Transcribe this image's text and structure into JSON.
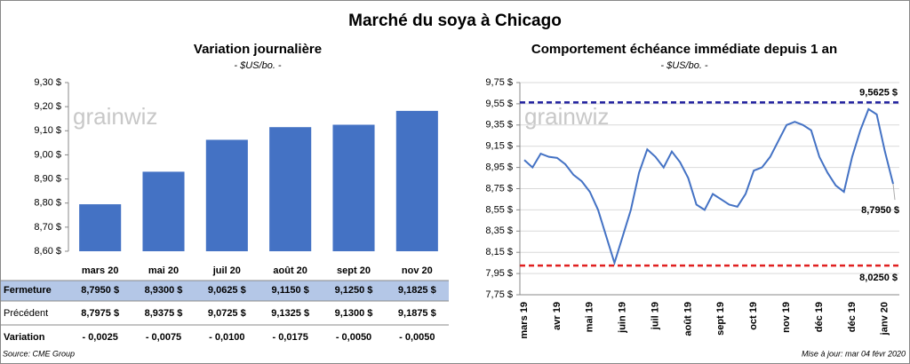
{
  "header": {
    "title": "Marché du soya à Chicago"
  },
  "chart_data": [
    {
      "type": "bar",
      "title": "Variation journalière",
      "subtitle": "- $US/bo. -",
      "watermark": "grainwiz",
      "categories": [
        "mars 20",
        "mai 20",
        "juil 20",
        "août 20",
        "sept 20",
        "nov 20"
      ],
      "values": [
        8.795,
        8.93,
        9.0625,
        9.115,
        9.125,
        9.1825
      ],
      "color": "#4472c4",
      "ylim": [
        8.6,
        9.3
      ],
      "yticks": [
        {
          "value": 8.6,
          "label": "8,60 $"
        },
        {
          "value": 8.7,
          "label": "8,70 $"
        },
        {
          "value": 8.8,
          "label": "8,80 $"
        },
        {
          "value": 8.9,
          "label": "8,90 $"
        },
        {
          "value": 9.0,
          "label": "9,00 $"
        },
        {
          "value": 9.1,
          "label": "9,10 $"
        },
        {
          "value": 9.2,
          "label": "9,20 $"
        },
        {
          "value": 9.3,
          "label": "9,30 $"
        }
      ]
    },
    {
      "type": "line",
      "title": "Comportement échéance immédiate depuis 1 an",
      "subtitle": "- $US/bo. -",
      "watermark": "grainwiz",
      "categories": [
        "mars 19",
        null,
        null,
        null,
        "avr 19",
        null,
        null,
        null,
        "mai 19",
        null,
        null,
        null,
        "juin 19",
        null,
        null,
        null,
        "juil 19",
        null,
        null,
        null,
        "août 19",
        null,
        null,
        null,
        "sept 19",
        null,
        null,
        null,
        "oct 19",
        null,
        null,
        null,
        "nov 19",
        null,
        null,
        null,
        "déc 19",
        null,
        null,
        null,
        "déc 19",
        null,
        null,
        null,
        "janv 20",
        null
      ],
      "series": [
        {
          "name": "Échéance immédiate",
          "color": "#4472c4",
          "values": [
            9.02,
            8.95,
            9.08,
            9.05,
            9.04,
            8.98,
            8.88,
            8.82,
            8.72,
            8.55,
            8.3,
            8.05,
            8.3,
            8.55,
            8.9,
            9.12,
            9.05,
            8.95,
            9.1,
            9.0,
            8.85,
            8.6,
            8.55,
            8.7,
            8.65,
            8.6,
            8.58,
            8.7,
            8.92,
            8.95,
            9.05,
            9.2,
            9.35,
            9.38,
            9.35,
            9.3,
            9.05,
            8.9,
            8.78,
            8.72,
            9.05,
            9.3,
            9.5,
            9.45,
            9.1,
            8.795
          ]
        }
      ],
      "end_label": "8,7950 $",
      "reference_lines": [
        {
          "value": 9.5625,
          "label": "9,5625 $",
          "color": "#1f1f9e"
        },
        {
          "value": 8.025,
          "label": "8,0250 $",
          "color": "#e02020"
        }
      ],
      "ylim": [
        7.75,
        9.75
      ],
      "yticks": [
        {
          "value": 7.75,
          "label": "7,75 $"
        },
        {
          "value": 7.95,
          "label": "7,95 $"
        },
        {
          "value": 8.15,
          "label": "8,15 $"
        },
        {
          "value": 8.35,
          "label": "8,35 $"
        },
        {
          "value": 8.55,
          "label": "8,55 $"
        },
        {
          "value": 8.75,
          "label": "8,75 $"
        },
        {
          "value": 8.95,
          "label": "8,95 $"
        },
        {
          "value": 9.15,
          "label": "9,15 $"
        },
        {
          "value": 9.35,
          "label": "9,35 $"
        },
        {
          "value": 9.55,
          "label": "9,55 $"
        },
        {
          "value": 9.75,
          "label": "9,75 $"
        }
      ]
    }
  ],
  "table": {
    "rows": [
      {
        "label": "Fermeture",
        "cells": [
          "8,7950  $",
          "8,9300  $",
          "9,0625  $",
          "9,1150  $",
          "9,1250  $",
          "9,1825  $"
        ]
      },
      {
        "label": "Précédent",
        "cells": [
          "8,7975  $",
          "8,9375  $",
          "9,0725  $",
          "9,1325  $",
          "9,1300  $",
          "9,1875  $"
        ]
      },
      {
        "label": "Variation",
        "cells": [
          "- 0,0025",
          "- 0,0075",
          "- 0,0100",
          "- 0,0175",
          "- 0,0050",
          "- 0,0050"
        ]
      }
    ]
  },
  "footer": {
    "source": "Source: CME Group",
    "updated": "Mise à jour: mar 04 févr 2020"
  }
}
